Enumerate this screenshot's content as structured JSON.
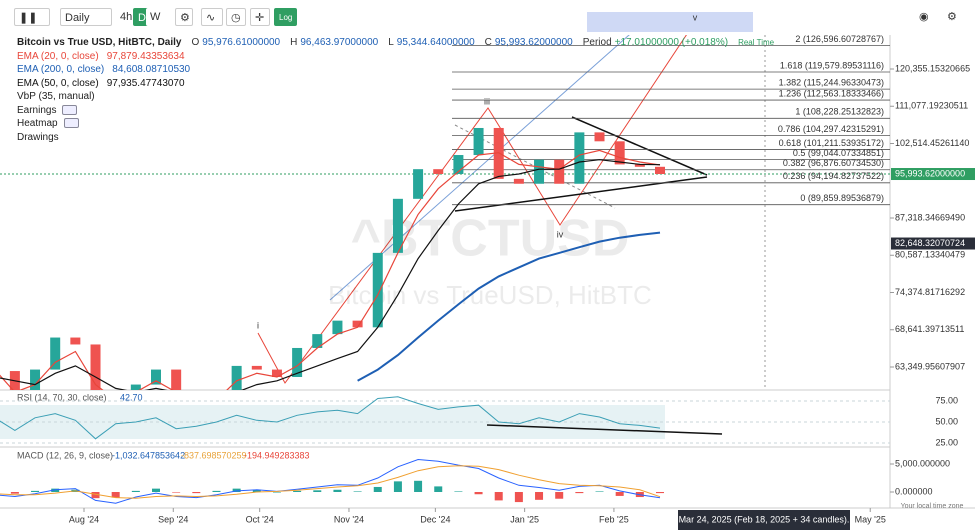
{
  "toolbar": {
    "interval": "Daily",
    "buttons": [
      "4h",
      "D",
      "W"
    ],
    "log": "Log"
  },
  "legend": {
    "title": "Bitcoin vs True USD, HitBTC, Daily",
    "ohlc": [
      {
        "key": "O",
        "value": "95,976.61000000"
      },
      {
        "key": "H",
        "value": "96,463.97000000"
      },
      {
        "key": "L",
        "value": "95,344.64000000"
      },
      {
        "key": "C",
        "value": "95,993.62000000"
      }
    ],
    "period_key": "Period",
    "period_value": "+17.01000000 (+0.018%)",
    "realtime": "Real Time",
    "indicators": [
      {
        "name": "EMA (20, 0, close)",
        "value": "97,879.43353634",
        "color": "#e8463a"
      },
      {
        "name": "EMA (200, 0, close)",
        "value": "84,608.08710530",
        "color": "#1e5fb4"
      },
      {
        "name": "EMA (50, 0, close)",
        "value": "97,935.47743070",
        "color": "#111111"
      },
      {
        "name": "VbP (35, manual)"
      },
      {
        "name": "Earnings"
      },
      {
        "name": "Heatmap"
      },
      {
        "name": "Drawings"
      }
    ]
  },
  "watermark": {
    "symbol": "^BTCTUSD",
    "description": "Bitcoin vs TrueUSD, HitBTC"
  },
  "waves": [
    "i",
    "iii",
    "iv",
    "v"
  ],
  "dates": [
    "2024-07-01",
    "2024-07-08",
    "2024-07-15",
    "2024-07-22",
    "2024-07-29",
    "2024-08-05",
    "2024-08-12",
    "2024-08-19",
    "2024-08-26",
    "2024-09-02",
    "2024-09-09",
    "2024-09-16",
    "2024-09-23",
    "2024-09-30",
    "2024-10-07",
    "2024-10-14",
    "2024-10-21",
    "2024-10-28",
    "2024-11-04",
    "2024-11-11",
    "2024-11-18",
    "2024-11-25",
    "2024-12-02",
    "2024-12-09",
    "2024-12-16",
    "2024-12-23",
    "2024-12-30",
    "2025-01-06",
    "2025-01-13",
    "2025-01-20",
    "2025-01-27",
    "2025-02-03",
    "2025-02-10",
    "2025-02-17"
  ],
  "close": [
    62800,
    57000,
    63000,
    67500,
    66500,
    54000,
    59000,
    61000,
    63000,
    57500,
    57000,
    60000,
    63500,
    63000,
    62000,
    66000,
    68000,
    70000,
    69000,
    81000,
    91000,
    97000,
    96000,
    100000,
    106000,
    95000,
    94000,
    99000,
    94000,
    105000,
    103000,
    98000,
    97500,
    95993.62
  ],
  "ema20": [
    63000,
    60000,
    61000,
    64000,
    65500,
    61000,
    59000,
    60000,
    61500,
    60000,
    58500,
    59000,
    61500,
    62500,
    62000,
    63500,
    66000,
    68000,
    69000,
    74000,
    81000,
    88000,
    93000,
    96500,
    100000,
    100500,
    98000,
    97500,
    97000,
    100000,
    101000,
    99500,
    98500,
    97879.43353634
  ],
  "ema50": [
    62000,
    61500,
    61000,
    62500,
    63500,
    62000,
    60500,
    60000,
    60500,
    60000,
    59000,
    59000,
    60000,
    61000,
    61500,
    62500,
    63500,
    64500,
    65500,
    69000,
    74000,
    80000,
    85000,
    90000,
    94000,
    95500,
    96000,
    97000,
    97000,
    98500,
    99000,
    98500,
    98000,
    97935.4774307
  ],
  "ema200": [
    null,
    null,
    null,
    null,
    null,
    null,
    null,
    null,
    null,
    null,
    null,
    null,
    null,
    null,
    null,
    null,
    null,
    null,
    61500,
    63000,
    65000,
    67500,
    70000,
    72500,
    75000,
    77000,
    78500,
    80000,
    81000,
    82000,
    83000,
    83700,
    84200,
    84608.0871053
  ],
  "price_axis": {
    "log": true,
    "ticks": [
      {
        "value": 120355.15320665,
        "label": "120,355.15320665"
      },
      {
        "value": 111077.19230511,
        "label": "111,077.19230511"
      },
      {
        "value": 102514.4526114,
        "label": "102,514.45261140"
      },
      {
        "value": 87318.3466949,
        "label": "87,318.34669490"
      },
      {
        "value": 80587.13340479,
        "label": "80,587.13340479"
      },
      {
        "value": 74374.81716292,
        "label": "74,374.81716292"
      },
      {
        "value": 68641.39713511,
        "label": "68,641.39713511"
      },
      {
        "value": 63349.95607907,
        "label": "63,349.95607907"
      }
    ],
    "current": {
      "value": 95993.62,
      "label": "95,993.62000000"
    },
    "marker": {
      "value": 82648.32070724,
      "label": "82,648.32070724"
    }
  },
  "fib_levels": [
    {
      "value": 126596.60728767,
      "label": "2 (126,596.60728767)"
    },
    {
      "value": 119579.89531116,
      "label": "1.618 (119,579.89531116)"
    },
    {
      "value": 115244.96330473,
      "label": "1.382 (115,244.96330473)"
    },
    {
      "value": 112563.18333466,
      "label": "1.236 (112,563.18333466)"
    },
    {
      "value": 108228.25132823,
      "label": "1 (108,228.25132823)"
    },
    {
      "value": 104297.42315291,
      "label": "0.786 (104,297.42315291)"
    },
    {
      "value": 101211.53935172,
      "label": "0.618 (101,211.53935172)"
    },
    {
      "value": 99044.07334851,
      "label": "0.5 (99,044.07334851)"
    },
    {
      "value": 96876.6073453,
      "label": "0.382 (96,876.60734530)"
    },
    {
      "value": 94194.82737522,
      "label": "0.236 (94,194.82737522)"
    },
    {
      "value": 89859.89536879,
      "label": "0 (89,859.89536879)"
    }
  ],
  "rsi": {
    "title": "RSI (14, 70, 30, close)",
    "last": "42.70",
    "values": [
      55,
      40,
      55,
      60,
      52,
      30,
      48,
      50,
      55,
      42,
      45,
      50,
      58,
      52,
      50,
      58,
      62,
      64,
      60,
      78,
      80,
      72,
      65,
      68,
      70,
      50,
      48,
      55,
      50,
      60,
      56,
      48,
      46,
      42.7
    ],
    "ticks": [
      {
        "value": 75,
        "label": "75.00"
      },
      {
        "value": 50,
        "label": "50.00"
      },
      {
        "value": 25,
        "label": "25.00"
      }
    ]
  },
  "macd": {
    "title": "MACD (12, 26, 9, close)",
    "last": [
      "-1,032.647853642",
      "-837.698570259",
      "-194.949283383"
    ],
    "macd": [
      -500,
      -800,
      -300,
      400,
      600,
      -1500,
      -2000,
      -900,
      -200,
      -800,
      -1000,
      -500,
      200,
      400,
      100,
      500,
      900,
      1300,
      1200,
      2500,
      4500,
      5800,
      5500,
      4800,
      4200,
      2500,
      1200,
      800,
      300,
      1000,
      1200,
      200,
      -500,
      -1032.647853642
    ],
    "signal": [
      -300,
      -500,
      -500,
      -200,
      200,
      -400,
      -1000,
      -1100,
      -800,
      -700,
      -800,
      -700,
      -400,
      0,
      100,
      300,
      600,
      900,
      1100,
      1600,
      2600,
      3800,
      4500,
      4700,
      4600,
      4000,
      3000,
      2200,
      1500,
      1200,
      1100,
      900,
      400,
      -837.698570259
    ],
    "hist": [
      -200,
      -300,
      200,
      600,
      400,
      -1100,
      -1000,
      200,
      600,
      -100,
      -200,
      200,
      600,
      400,
      0,
      200,
      300,
      400,
      100,
      900,
      1900,
      2000,
      1000,
      100,
      -400,
      -1500,
      -1800,
      -1400,
      -1200,
      -200,
      100,
      -700,
      -900,
      -194.949283383
    ],
    "ticks": [
      {
        "value": 5000,
        "label": "5,000.000000"
      },
      {
        "value": 0,
        "label": "0.000000"
      }
    ]
  },
  "x_axis": {
    "ticks": [
      {
        "date": "2024-08-01",
        "label": "Aug '24"
      },
      {
        "date": "2024-09-01",
        "label": "Sep '24"
      },
      {
        "date": "2024-10-01",
        "label": "Oct '24"
      },
      {
        "date": "2024-11-01",
        "label": "Nov '24"
      },
      {
        "date": "2024-12-01",
        "label": "Dec '24"
      },
      {
        "date": "2025-01-01",
        "label": "Jan '25"
      },
      {
        "date": "2025-02-01",
        "label": "Feb '25"
      },
      {
        "date": "2025-05-01",
        "label": "May '25"
      }
    ],
    "crosshair": "Mar 24, 2025 (Feb 18, 2025 + 34 candles).",
    "timezone": "Your local time zone"
  }
}
